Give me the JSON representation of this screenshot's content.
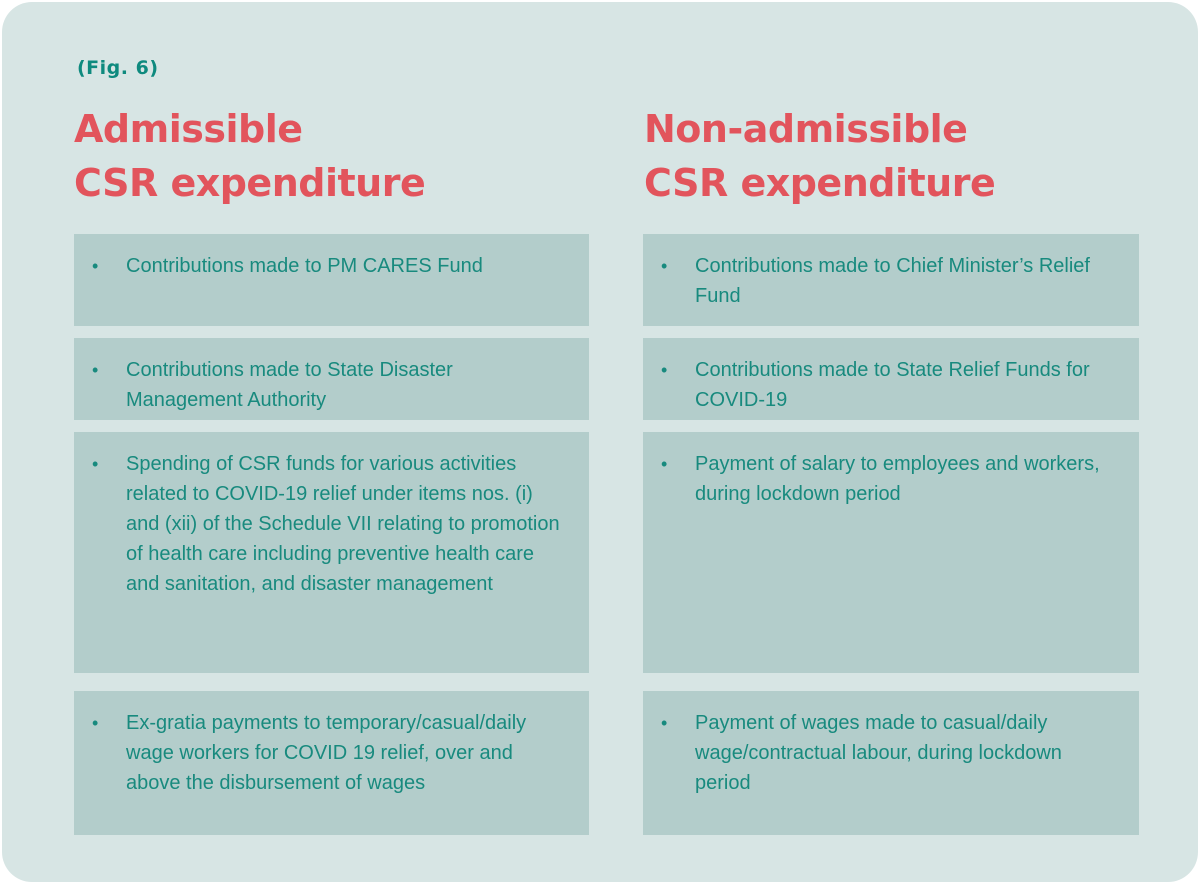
{
  "figure_label": "(Fig. 6)",
  "admissible": {
    "heading_line1": "Admissible",
    "heading_line2": "CSR expenditure",
    "items": [
      "Contributions made to PM CARES Fund",
      "Contributions made to State Disaster Management Authority",
      "Spending of CSR funds for various activities related to COVID-19 relief under items nos. (i) and (xii) of the Schedule VII relating to promotion of health care including preventive health care and sanitation, and disaster management",
      "Ex-gratia payments to temporary/casual/daily wage workers for COVID 19 relief, over and above the disbursement of wages"
    ]
  },
  "non_admissible": {
    "heading_line1": "Non-admissible",
    "heading_line2": "CSR expenditure",
    "items": [
      "Contributions made to Chief Minister’s Relief Fund",
      "Contributions made to State Relief Funds for COVID-19",
      "Payment of salary to employees and workers, during lockdown period",
      "Payment of wages made to casual/daily wage/contractual labour, during lockdown period"
    ]
  },
  "bullet_symbol": "•",
  "colors": {
    "background": "#d7e5e4",
    "box": "#b3cdcb",
    "heading": "#e2545c",
    "text": "#188a7e"
  }
}
